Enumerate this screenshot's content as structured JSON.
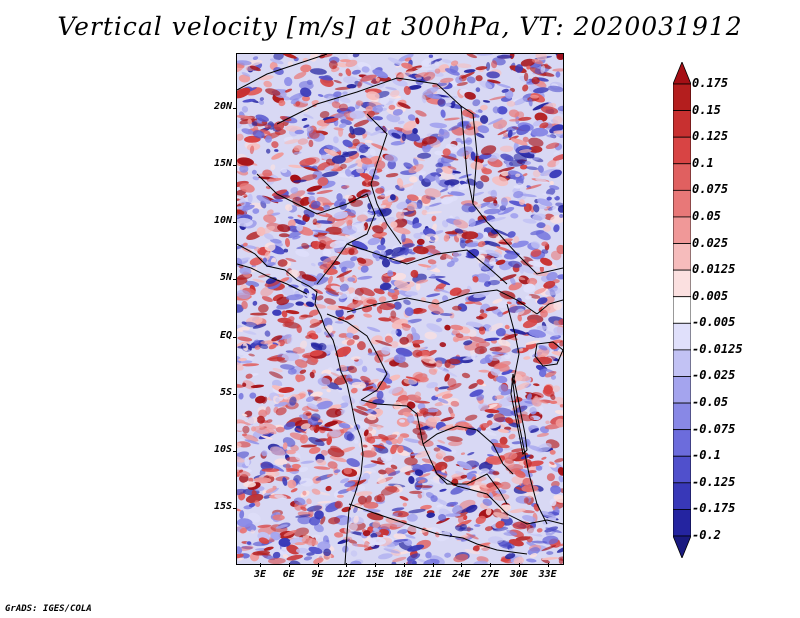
{
  "title": "Vertical velocity [m/s] at 300hPa, VT: 2020031912",
  "credit": "GrADS: IGES/COLA",
  "map": {
    "lat_labels": [
      "20N",
      "15N",
      "10N",
      "5N",
      "EQ",
      "5S",
      "10S",
      "15S"
    ],
    "lat_values": [
      20,
      15,
      10,
      5,
      0,
      -5,
      -10,
      -15
    ],
    "lon_labels": [
      "3E",
      "6E",
      "9E",
      "12E",
      "15E",
      "18E",
      "21E",
      "24E",
      "27E",
      "30E",
      "33E"
    ],
    "lon_values": [
      3,
      6,
      9,
      12,
      15,
      18,
      21,
      24,
      27,
      30,
      33
    ],
    "lon_range": [
      0.5,
      34.5
    ],
    "lat_range": [
      -19.8,
      24.8
    ]
  },
  "colorbar": {
    "labels": [
      "0.175",
      "0.15",
      "0.125",
      "0.1",
      "0.075",
      "0.05",
      "0.025",
      "0.0125",
      "0.005",
      "-0.005",
      "-0.0125",
      "-0.025",
      "-0.05",
      "-0.075",
      "-0.1",
      "-0.125",
      "-0.175",
      "-0.2"
    ],
    "colors": [
      "#a50f15",
      "#b41e1e",
      "#c83030",
      "#d84444",
      "#e06060",
      "#e87878",
      "#f09898",
      "#f6bcbc",
      "#fbe0e0",
      "#ffffff",
      "#e0e0fb",
      "#c2c2f4",
      "#a4a4ee",
      "#8888e6",
      "#6c6cdc",
      "#5050cc",
      "#3838b8",
      "#2424a0",
      "#1a1a80"
    ]
  },
  "colors": {
    "positive": "#d03030",
    "negative": "#5050d0"
  }
}
